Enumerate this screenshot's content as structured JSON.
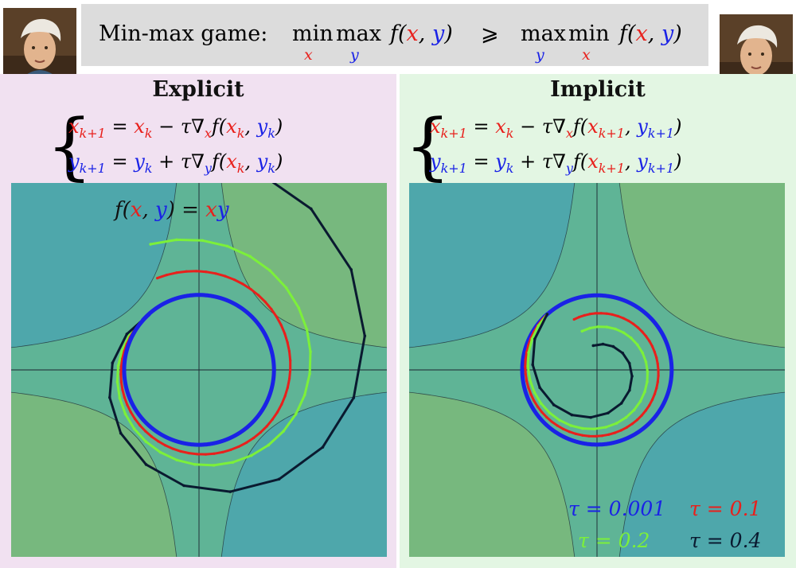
{
  "banner": {
    "label": "Min-max game:",
    "lhs_min": "min",
    "lhs_min_sub": "x",
    "lhs_max": "max",
    "lhs_max_sub": "y",
    "lhs_func": "f(x, y)",
    "relation": "⩾",
    "rhs_max": "max",
    "rhs_max_sub": "y",
    "rhs_min": "min",
    "rhs_min_sub": "x",
    "rhs_func": "f(x, y)"
  },
  "left_panel": {
    "title": "Explicit",
    "line1": "x_{k+1} = x_k − τ∇_x f(x_k, y_k)",
    "line2": "y_{k+1} = y_k + τ∇_y f(x_k, y_k)",
    "plot_label": "f(x, y) = xy"
  },
  "right_panel": {
    "title": "Implicit",
    "line1": "x_{k+1} = x_k − τ∇_x f(x_{k+1}, y_{k+1})",
    "line2": "y_{k+1} = y_k + τ∇_y f(x_{k+1}, y_{k+1})"
  },
  "legend": [
    {
      "label": "τ = 0.001",
      "color": "#1a22e6"
    },
    {
      "label": "τ = 0.1",
      "color": "#e8201c"
    },
    {
      "label": "τ = 0.2",
      "color": "#7cf03a"
    },
    {
      "label": "τ = 0.4",
      "color": "#0a1a30"
    }
  ],
  "colors": {
    "x_var": "#e8201c",
    "y_var": "#1a22e6",
    "banner_bg": "#dcdcdc",
    "explicit_bg": "#f1e1f1",
    "implicit_bg": "#e3f6e3"
  }
}
